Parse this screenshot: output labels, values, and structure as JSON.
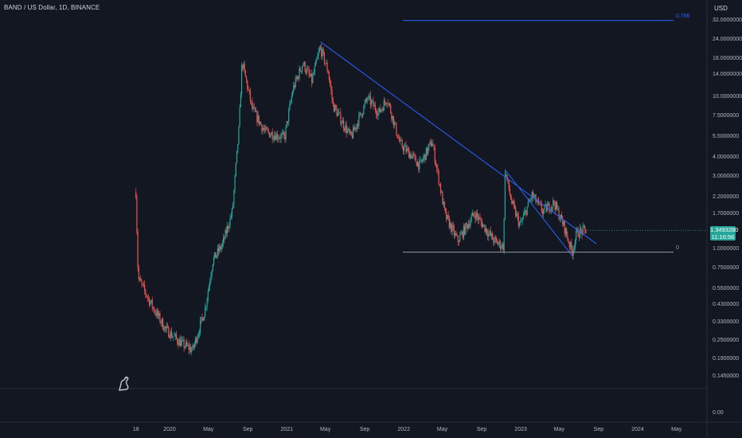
{
  "header": {
    "title": "BAND / US Dollar, 1D, BINANCE",
    "currency": "USD"
  },
  "last_price": {
    "value": "1.3493280",
    "countdown": "11:16:56"
  },
  "fib_levels": [
    {
      "label": "0.786",
      "price": 32.5,
      "color": "#2962ff"
    },
    {
      "label": "0",
      "price": 0.97,
      "color": "#9598a1"
    }
  ],
  "bottom_pane_value": "0.00",
  "colors": {
    "background": "#131722",
    "up": "#26a69a",
    "down": "#ef5350",
    "trendline": "#2962ff",
    "axis_text": "#b2b5be"
  },
  "chart_data": {
    "type": "candlestick",
    "title": "BAND / US Dollar, 1D, BINANCE",
    "y_scale": "log",
    "ylim": [
      0.13,
      36
    ],
    "y_ticks": [
      "32.0000000",
      "24.0000000",
      "18.0000000",
      "14.0000000",
      "10.0000000",
      "7.5000000",
      "5.5000000",
      "4.0000000",
      "3.0000000",
      "2.2000000",
      "1.7000000",
      "1.0000000",
      "0.7500000",
      "0.5500000",
      "0.4300000",
      "0.3300000",
      "0.2500000",
      "0.1900000",
      "0.1450000"
    ],
    "y_tick_values": [
      32,
      24,
      18,
      14,
      10,
      7.5,
      5.5,
      4,
      3,
      2.2,
      1.7,
      1.0,
      0.75,
      0.55,
      0.43,
      0.33,
      0.25,
      0.19,
      0.145
    ],
    "x_ticks": [
      "18",
      "2020",
      "May",
      "Sep",
      "2021",
      "May",
      "Sep",
      "2022",
      "May",
      "Sep",
      "2023",
      "May",
      "Sep",
      "2024",
      "May"
    ],
    "x_tick_dates": [
      "2019-09-18",
      "2020-01-01",
      "2020-05-01",
      "2020-09-01",
      "2021-01-01",
      "2021-05-01",
      "2021-09-01",
      "2022-01-01",
      "2022-05-01",
      "2022-09-01",
      "2023-01-01",
      "2023-05-01",
      "2023-09-01",
      "2024-01-01",
      "2024-05-01"
    ],
    "price_path": [
      {
        "date": "2019-09-18",
        "price": 2.4
      },
      {
        "date": "2019-09-25",
        "price": 0.65
      },
      {
        "date": "2019-11-10",
        "price": 0.42
      },
      {
        "date": "2019-12-20",
        "price": 0.3
      },
      {
        "date": "2020-02-10",
        "price": 0.24
      },
      {
        "date": "2020-03-13",
        "price": 0.22
      },
      {
        "date": "2020-04-20",
        "price": 0.4
      },
      {
        "date": "2020-05-15",
        "price": 0.85
      },
      {
        "date": "2020-06-15",
        "price": 1.1
      },
      {
        "date": "2020-07-15",
        "price": 1.8
      },
      {
        "date": "2020-08-05",
        "price": 6.5
      },
      {
        "date": "2020-08-14",
        "price": 17.5
      },
      {
        "date": "2020-09-15",
        "price": 8.5
      },
      {
        "date": "2020-10-25",
        "price": 6.0
      },
      {
        "date": "2020-12-25",
        "price": 5.5
      },
      {
        "date": "2021-01-20",
        "price": 11.5
      },
      {
        "date": "2021-02-20",
        "price": 17.0
      },
      {
        "date": "2021-03-20",
        "price": 13.0
      },
      {
        "date": "2021-04-15",
        "price": 21.5
      },
      {
        "date": "2021-05-10",
        "price": 15.0
      },
      {
        "date": "2021-05-25",
        "price": 9.0
      },
      {
        "date": "2021-07-20",
        "price": 5.5
      },
      {
        "date": "2021-09-10",
        "price": 10.0
      },
      {
        "date": "2021-10-15",
        "price": 8.0
      },
      {
        "date": "2021-11-10",
        "price": 10.0
      },
      {
        "date": "2021-12-20",
        "price": 5.0
      },
      {
        "date": "2022-01-25",
        "price": 4.2
      },
      {
        "date": "2022-02-20",
        "price": 3.6
      },
      {
        "date": "2022-03-30",
        "price": 5.2
      },
      {
        "date": "2022-05-10",
        "price": 1.7
      },
      {
        "date": "2022-06-18",
        "price": 1.15
      },
      {
        "date": "2022-08-10",
        "price": 1.75
      },
      {
        "date": "2022-10-10",
        "price": 1.15
      },
      {
        "date": "2022-11-09",
        "price": 1.05
      },
      {
        "date": "2022-11-12",
        "price": 3.4
      },
      {
        "date": "2022-12-05",
        "price": 2.0
      },
      {
        "date": "2022-12-30",
        "price": 1.45
      },
      {
        "date": "2023-02-05",
        "price": 2.3
      },
      {
        "date": "2023-03-10",
        "price": 1.8
      },
      {
        "date": "2023-04-15",
        "price": 2.05
      },
      {
        "date": "2023-05-15",
        "price": 1.45
      },
      {
        "date": "2023-06-10",
        "price": 0.97
      },
      {
        "date": "2023-06-25",
        "price": 1.3
      },
      {
        "date": "2023-07-25",
        "price": 1.35
      }
    ],
    "trendlines": [
      {
        "from": {
          "date": "2021-04-16",
          "price": 23.5
        },
        "to": {
          "date": "2023-08-25",
          "price": 1.1
        }
      },
      {
        "from": {
          "date": "2022-11-12",
          "price": 3.4
        },
        "to": {
          "date": "2023-06-10",
          "price": 0.92
        }
      }
    ],
    "grid": false,
    "legend": "none"
  }
}
